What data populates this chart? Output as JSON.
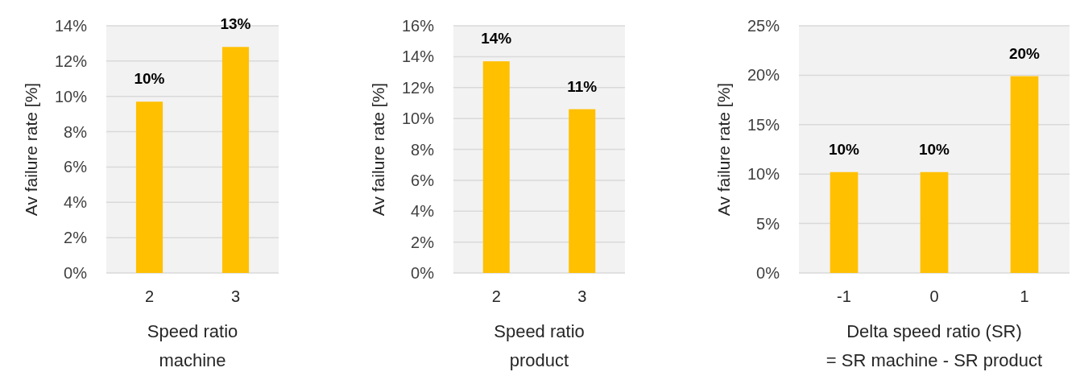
{
  "chart_data": [
    {
      "type": "bar",
      "categories": [
        "2",
        "3"
      ],
      "values": [
        9.7,
        12.8
      ],
      "value_labels": [
        "10%",
        "13%"
      ],
      "color": "#ffc000",
      "xlabel": "Speed ratio\nmachine",
      "ylabel": "Av failure rate [%]",
      "ylim": [
        0,
        14
      ],
      "yticks": [
        {
          "value": 0,
          "label": "0%"
        },
        {
          "value": 2,
          "label": "2%"
        },
        {
          "value": 4,
          "label": "4%"
        },
        {
          "value": 6,
          "label": "6%"
        },
        {
          "value": 8,
          "label": "8%"
        },
        {
          "value": 10,
          "label": "10%"
        },
        {
          "value": 12,
          "label": "12%"
        },
        {
          "value": 14,
          "label": "14%"
        }
      ],
      "grid": "y"
    },
    {
      "type": "bar",
      "categories": [
        "2",
        "3"
      ],
      "values": [
        13.7,
        10.6
      ],
      "value_labels": [
        "14%",
        "11%"
      ],
      "color": "#ffc000",
      "xlabel": "Speed ratio\nproduct",
      "ylabel": "Av failure rate [%]",
      "ylim": [
        0,
        16
      ],
      "yticks": [
        {
          "value": 0,
          "label": "0%"
        },
        {
          "value": 2,
          "label": "2%"
        },
        {
          "value": 4,
          "label": "4%"
        },
        {
          "value": 6,
          "label": "6%"
        },
        {
          "value": 8,
          "label": "8%"
        },
        {
          "value": 10,
          "label": "10%"
        },
        {
          "value": 12,
          "label": "12%"
        },
        {
          "value": 14,
          "label": "14%"
        },
        {
          "value": 16,
          "label": "16%"
        }
      ],
      "grid": "y"
    },
    {
      "type": "bar",
      "categories": [
        "-1",
        "0",
        "1"
      ],
      "values": [
        10.2,
        10.2,
        19.9
      ],
      "value_labels": [
        "10%",
        "10%",
        "20%"
      ],
      "color": "#ffc000",
      "xlabel": "Delta speed ratio (SR)\n= SR machine - SR product",
      "ylabel": "Av failure rate [%]",
      "ylim": [
        0,
        25
      ],
      "yticks": [
        {
          "value": 0,
          "label": "0%"
        },
        {
          "value": 5,
          "label": "5%"
        },
        {
          "value": 10,
          "label": "10%"
        },
        {
          "value": 15,
          "label": "15%"
        },
        {
          "value": 20,
          "label": "20%"
        },
        {
          "value": 25,
          "label": "25%"
        }
      ],
      "grid": "y"
    }
  ]
}
